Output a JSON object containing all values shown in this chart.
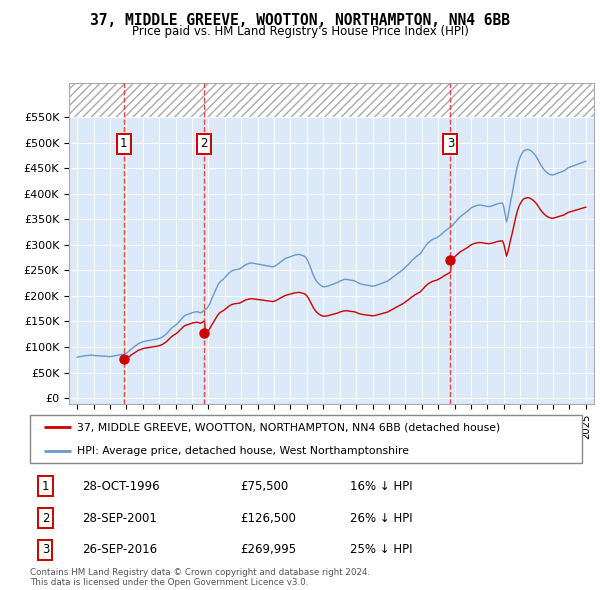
{
  "title": "37, MIDDLE GREEVE, WOOTTON, NORTHAMPTON, NN4 6BB",
  "subtitle": "Price paid vs. HM Land Registry's House Price Index (HPI)",
  "legend_line1": "37, MIDDLE GREEVE, WOOTTON, NORTHAMPTON, NN4 6BB (detached house)",
  "legend_line2": "HPI: Average price, detached house, West Northamptonshire",
  "copyright": "Contains HM Land Registry data © Crown copyright and database right 2024.\nThis data is licensed under the Open Government Licence v3.0.",
  "transactions": [
    {
      "num": 1,
      "date": "28-OCT-1996",
      "price": 75500,
      "pct": "16%",
      "dir": "↓",
      "year": 1996.83
    },
    {
      "num": 2,
      "date": "28-SEP-2001",
      "price": 126500,
      "pct": "26%",
      "dir": "↓",
      "year": 2001.75
    },
    {
      "num": 3,
      "date": "26-SEP-2016",
      "price": 269995,
      "pct": "25%",
      "dir": "↓",
      "year": 2016.75
    }
  ],
  "ylim": [
    0,
    550000
  ],
  "xlim": [
    1993.5,
    2025.5
  ],
  "yticks": [
    0,
    50000,
    100000,
    150000,
    200000,
    250000,
    300000,
    350000,
    400000,
    450000,
    500000,
    550000
  ],
  "ytick_labels": [
    "£0",
    "£50K",
    "£100K",
    "£150K",
    "£200K",
    "£250K",
    "£300K",
    "£350K",
    "£400K",
    "£450K",
    "£500K",
    "£550K"
  ],
  "background_color": "#dce9f8",
  "hatch_color": "#b0b0b0",
  "red_line_color": "#cc0000",
  "blue_line_color": "#6699cc",
  "vline_color": "#ee3333",
  "marker_color": "#cc0000",
  "box_edge_color": "#cc0000",
  "years_hpi": [
    1994.0,
    1994.083,
    1994.167,
    1994.25,
    1994.333,
    1994.417,
    1994.5,
    1994.583,
    1994.667,
    1994.75,
    1994.833,
    1994.917,
    1995.0,
    1995.083,
    1995.167,
    1995.25,
    1995.333,
    1995.417,
    1995.5,
    1995.583,
    1995.667,
    1995.75,
    1995.833,
    1995.917,
    1996.0,
    1996.083,
    1996.167,
    1996.25,
    1996.333,
    1996.417,
    1996.5,
    1996.583,
    1996.667,
    1996.75,
    1996.833,
    1996.917,
    1997.0,
    1997.083,
    1997.167,
    1997.25,
    1997.333,
    1997.417,
    1997.5,
    1997.583,
    1997.667,
    1997.75,
    1997.833,
    1997.917,
    1998.0,
    1998.083,
    1998.167,
    1998.25,
    1998.333,
    1998.417,
    1998.5,
    1998.583,
    1998.667,
    1998.75,
    1998.833,
    1998.917,
    1999.0,
    1999.083,
    1999.167,
    1999.25,
    1999.333,
    1999.417,
    1999.5,
    1999.583,
    1999.667,
    1999.75,
    1999.833,
    1999.917,
    2000.0,
    2000.083,
    2000.167,
    2000.25,
    2000.333,
    2000.417,
    2000.5,
    2000.583,
    2000.667,
    2000.75,
    2000.833,
    2000.917,
    2001.0,
    2001.083,
    2001.167,
    2001.25,
    2001.333,
    2001.417,
    2001.5,
    2001.583,
    2001.667,
    2001.75,
    2001.833,
    2001.917,
    2002.0,
    2002.083,
    2002.167,
    2002.25,
    2002.333,
    2002.417,
    2002.5,
    2002.583,
    2002.667,
    2002.75,
    2002.833,
    2002.917,
    2003.0,
    2003.083,
    2003.167,
    2003.25,
    2003.333,
    2003.417,
    2003.5,
    2003.583,
    2003.667,
    2003.75,
    2003.833,
    2003.917,
    2004.0,
    2004.083,
    2004.167,
    2004.25,
    2004.333,
    2004.417,
    2004.5,
    2004.583,
    2004.667,
    2004.75,
    2004.833,
    2004.917,
    2005.0,
    2005.083,
    2005.167,
    2005.25,
    2005.333,
    2005.417,
    2005.5,
    2005.583,
    2005.667,
    2005.75,
    2005.833,
    2005.917,
    2006.0,
    2006.083,
    2006.167,
    2006.25,
    2006.333,
    2006.417,
    2006.5,
    2006.583,
    2006.667,
    2006.75,
    2006.833,
    2006.917,
    2007.0,
    2007.083,
    2007.167,
    2007.25,
    2007.333,
    2007.417,
    2007.5,
    2007.583,
    2007.667,
    2007.75,
    2007.833,
    2007.917,
    2008.0,
    2008.083,
    2008.167,
    2008.25,
    2008.333,
    2008.417,
    2008.5,
    2008.583,
    2008.667,
    2008.75,
    2008.833,
    2008.917,
    2009.0,
    2009.083,
    2009.167,
    2009.25,
    2009.333,
    2009.417,
    2009.5,
    2009.583,
    2009.667,
    2009.75,
    2009.833,
    2009.917,
    2010.0,
    2010.083,
    2010.167,
    2010.25,
    2010.333,
    2010.417,
    2010.5,
    2010.583,
    2010.667,
    2010.75,
    2010.833,
    2010.917,
    2011.0,
    2011.083,
    2011.167,
    2011.25,
    2011.333,
    2011.417,
    2011.5,
    2011.583,
    2011.667,
    2011.75,
    2011.833,
    2011.917,
    2012.0,
    2012.083,
    2012.167,
    2012.25,
    2012.333,
    2012.417,
    2012.5,
    2012.583,
    2012.667,
    2012.75,
    2012.833,
    2012.917,
    2013.0,
    2013.083,
    2013.167,
    2013.25,
    2013.333,
    2013.417,
    2013.5,
    2013.583,
    2013.667,
    2013.75,
    2013.833,
    2013.917,
    2014.0,
    2014.083,
    2014.167,
    2014.25,
    2014.333,
    2014.417,
    2014.5,
    2014.583,
    2014.667,
    2014.75,
    2014.833,
    2014.917,
    2015.0,
    2015.083,
    2015.167,
    2015.25,
    2015.333,
    2015.417,
    2015.5,
    2015.583,
    2015.667,
    2015.75,
    2015.833,
    2015.917,
    2016.0,
    2016.083,
    2016.167,
    2016.25,
    2016.333,
    2016.417,
    2016.5,
    2016.583,
    2016.667,
    2016.75,
    2016.833,
    2016.917,
    2017.0,
    2017.083,
    2017.167,
    2017.25,
    2017.333,
    2017.417,
    2017.5,
    2017.583,
    2017.667,
    2017.75,
    2017.833,
    2017.917,
    2018.0,
    2018.083,
    2018.167,
    2018.25,
    2018.333,
    2018.417,
    2018.5,
    2018.583,
    2018.667,
    2018.75,
    2018.833,
    2018.917,
    2019.0,
    2019.083,
    2019.167,
    2019.25,
    2019.333,
    2019.417,
    2019.5,
    2019.583,
    2019.667,
    2019.75,
    2019.833,
    2019.917,
    2020.0,
    2020.083,
    2020.167,
    2020.25,
    2020.333,
    2020.417,
    2020.5,
    2020.583,
    2020.667,
    2020.75,
    2020.833,
    2020.917,
    2021.0,
    2021.083,
    2021.167,
    2021.25,
    2021.333,
    2021.417,
    2021.5,
    2021.583,
    2021.667,
    2021.75,
    2021.833,
    2021.917,
    2022.0,
    2022.083,
    2022.167,
    2022.25,
    2022.333,
    2022.417,
    2022.5,
    2022.583,
    2022.667,
    2022.75,
    2022.833,
    2022.917,
    2023.0,
    2023.083,
    2023.167,
    2023.25,
    2023.333,
    2023.417,
    2023.5,
    2023.583,
    2023.667,
    2023.75,
    2023.833,
    2023.917,
    2024.0,
    2024.083,
    2024.167,
    2024.25,
    2024.333,
    2024.417,
    2024.5,
    2024.583,
    2024.667,
    2024.75,
    2024.833,
    2024.917,
    2025.0
  ],
  "hpi_values": [
    80000,
    80500,
    81000,
    81500,
    82000,
    82500,
    83000,
    83200,
    83400,
    83600,
    83800,
    84000,
    83500,
    83200,
    83000,
    82800,
    82600,
    82400,
    82200,
    82000,
    81800,
    81500,
    81200,
    81000,
    81200,
    81500,
    82000,
    82500,
    83000,
    83500,
    84000,
    84500,
    85000,
    85500,
    86000,
    87000,
    88000,
    90000,
    92000,
    95000,
    97000,
    99000,
    101000,
    103000,
    105000,
    107000,
    108000,
    109000,
    110000,
    111000,
    111500,
    112000,
    112500,
    113000,
    113500,
    114000,
    114500,
    115000,
    115500,
    116000,
    117000,
    118000,
    119000,
    121000,
    123000,
    125000,
    128000,
    131000,
    134000,
    137000,
    139000,
    141000,
    143000,
    145000,
    148000,
    151000,
    154000,
    157000,
    160000,
    162000,
    163000,
    164000,
    165000,
    166000,
    167000,
    168000,
    168500,
    169000,
    169000,
    168000,
    167000,
    168000,
    170000,
    172000,
    174000,
    176000,
    180000,
    185000,
    192000,
    198000,
    204000,
    210000,
    216000,
    222000,
    226000,
    229000,
    231000,
    233000,
    236000,
    239000,
    242000,
    245000,
    247000,
    249000,
    250000,
    251000,
    251500,
    252000,
    252500,
    253000,
    255000,
    257000,
    259000,
    261000,
    262000,
    263000,
    264000,
    264500,
    264500,
    264000,
    263500,
    263000,
    262500,
    262000,
    261500,
    261000,
    260500,
    260000,
    259500,
    259000,
    258500,
    258000,
    257500,
    257000,
    258000,
    259000,
    261000,
    263000,
    265000,
    267000,
    269000,
    271000,
    273000,
    274000,
    275000,
    276000,
    277000,
    278000,
    279000,
    280000,
    280500,
    281000,
    281500,
    281000,
    280000,
    279000,
    278000,
    276000,
    272000,
    267000,
    260000,
    253000,
    246000,
    239000,
    234000,
    229000,
    226000,
    223000,
    221000,
    219000,
    218000,
    218000,
    218500,
    219000,
    220000,
    221000,
    222000,
    223000,
    224000,
    225000,
    226000,
    227000,
    229000,
    230000,
    231000,
    232000,
    232500,
    232500,
    232000,
    231500,
    231000,
    230500,
    230000,
    229500,
    228000,
    226500,
    225000,
    224000,
    223000,
    222500,
    222000,
    221500,
    221000,
    220500,
    220000,
    219500,
    219000,
    219500,
    220000,
    221000,
    222000,
    223000,
    224000,
    225000,
    226000,
    227000,
    228000,
    229000,
    231000,
    233000,
    235000,
    237000,
    239000,
    241000,
    243000,
    245000,
    247000,
    249000,
    251000,
    253000,
    256000,
    259000,
    261000,
    264000,
    267000,
    270000,
    272000,
    275000,
    277000,
    279000,
    281000,
    283000,
    287000,
    291000,
    295000,
    299000,
    302000,
    305000,
    307000,
    309000,
    311000,
    312000,
    313000,
    314000,
    316000,
    318000,
    320000,
    322000,
    325000,
    327000,
    329000,
    331000,
    333000,
    335000,
    337000,
    340000,
    343000,
    346000,
    349000,
    352000,
    355000,
    357000,
    359000,
    361000,
    363000,
    365000,
    367000,
    370000,
    372000,
    374000,
    375000,
    376000,
    377000,
    377500,
    378000,
    378000,
    377500,
    377000,
    376500,
    376000,
    375500,
    375000,
    375500,
    376000,
    377000,
    378000,
    379000,
    380000,
    381000,
    381500,
    382000,
    382000,
    375000,
    360000,
    345000,
    355000,
    370000,
    385000,
    398000,
    413000,
    428000,
    443000,
    455000,
    465000,
    472000,
    478000,
    482000,
    485000,
    486000,
    486500,
    487000,
    486000,
    484000,
    482000,
    479000,
    476000,
    472000,
    467000,
    462000,
    457000,
    453000,
    449000,
    446000,
    443000,
    441000,
    439000,
    438000,
    437000,
    437000,
    438000,
    439000,
    440000,
    441000,
    442000,
    443000,
    444000,
    445000,
    447000,
    449000,
    451000,
    452000,
    453000,
    454000,
    455000,
    456000,
    457000,
    458000,
    459000,
    460000,
    461000,
    462000,
    463000,
    464000
  ]
}
